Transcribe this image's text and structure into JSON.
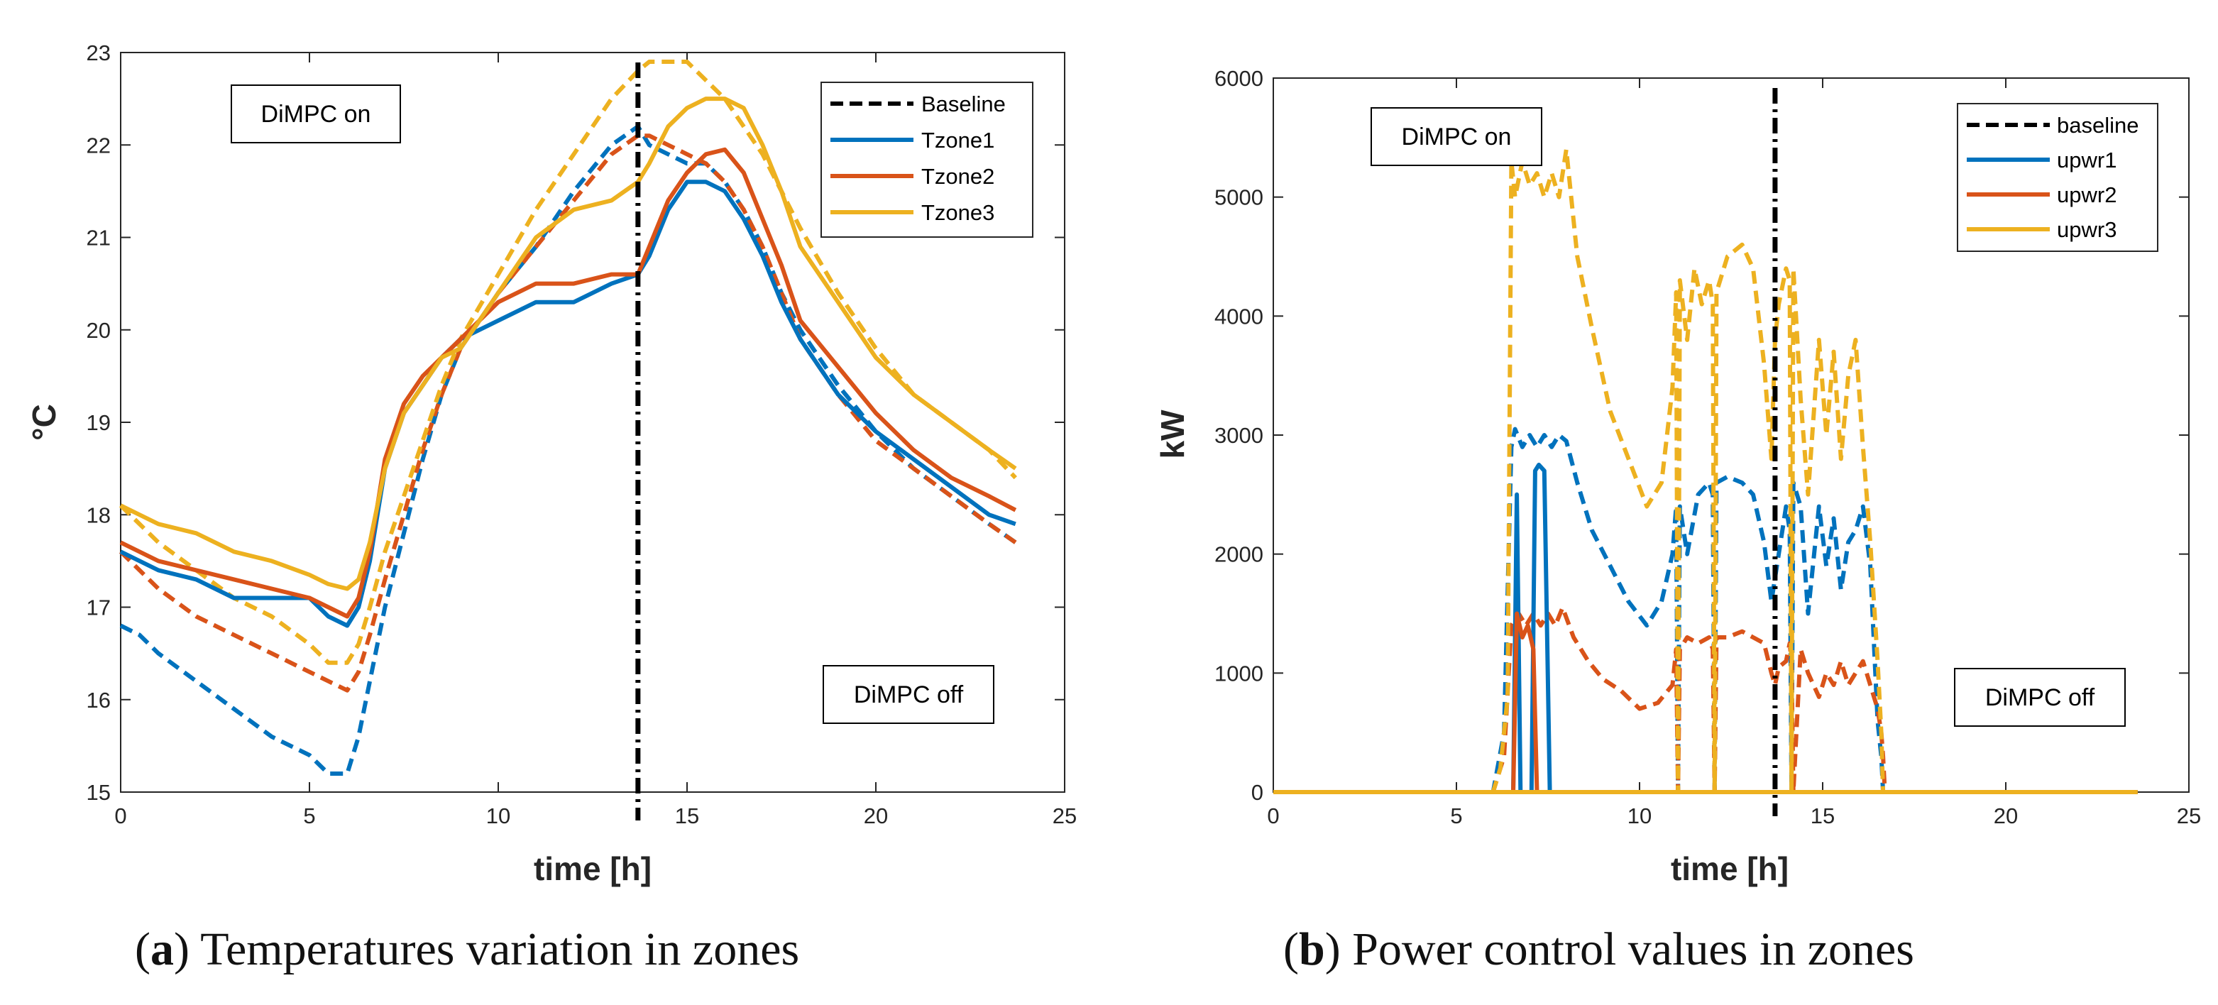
{
  "chart_data": [
    {
      "type": "line",
      "panel": "a",
      "caption_label": "a",
      "caption_text": "Temperatures variation in zones",
      "xlabel": "time [h]",
      "ylabel": "°C",
      "xlim": [
        0,
        25
      ],
      "ylim": [
        15,
        23
      ],
      "xticks": [
        0,
        5,
        10,
        15,
        20,
        25
      ],
      "yticks": [
        15,
        16,
        17,
        18,
        19,
        20,
        21,
        22,
        23
      ],
      "grid": false,
      "legend_position": "top-right",
      "vline": {
        "x": 13.7,
        "name": "Baseline",
        "color": "#000000",
        "style": "dash-dot"
      },
      "annotations": [
        {
          "text": "DiMPC on",
          "x": 5,
          "y": 22.3
        },
        {
          "text": "DiMPC off",
          "x": 21.4,
          "y": 16.0
        }
      ],
      "series": [
        {
          "name": "Baseline",
          "legend_only": true,
          "color": "#000000",
          "style": "dash"
        },
        {
          "name": "Tzone1",
          "color": "#0072BD",
          "style": "solid",
          "x": [
            0,
            1,
            2,
            3,
            4,
            5,
            5.5,
            6,
            6.3,
            6.6,
            7,
            7.5,
            8,
            8.5,
            9,
            10,
            11,
            12,
            13,
            13.7,
            14,
            14.5,
            15,
            15.5,
            16,
            16.5,
            17,
            17.5,
            18,
            19,
            20,
            21,
            22,
            23,
            23.7
          ],
          "y": [
            17.6,
            17.4,
            17.3,
            17.1,
            17.1,
            17.1,
            16.9,
            16.8,
            17.0,
            17.5,
            18.5,
            19.1,
            19.4,
            19.7,
            19.9,
            20.1,
            20.3,
            20.3,
            20.5,
            20.6,
            20.8,
            21.3,
            21.6,
            21.6,
            21.5,
            21.2,
            20.8,
            20.3,
            19.9,
            19.3,
            18.9,
            18.6,
            18.3,
            18.0,
            17.9
          ]
        },
        {
          "name": "Tzone2",
          "color": "#D95319",
          "style": "solid",
          "x": [
            0,
            1,
            2,
            3,
            4,
            5,
            5.5,
            6,
            6.3,
            6.6,
            7,
            7.5,
            8,
            8.5,
            9,
            10,
            11,
            12,
            13,
            13.7,
            14,
            14.5,
            15,
            15.5,
            16,
            16.5,
            17,
            17.5,
            18,
            19,
            20,
            21,
            22,
            23,
            23.7
          ],
          "y": [
            17.7,
            17.5,
            17.4,
            17.3,
            17.2,
            17.1,
            17.0,
            16.9,
            17.1,
            17.6,
            18.6,
            19.2,
            19.5,
            19.7,
            19.9,
            20.3,
            20.5,
            20.5,
            20.6,
            20.6,
            20.9,
            21.4,
            21.7,
            21.9,
            21.95,
            21.7,
            21.2,
            20.7,
            20.1,
            19.6,
            19.1,
            18.7,
            18.4,
            18.2,
            18.05
          ]
        },
        {
          "name": "Tzone3",
          "color": "#EDB120",
          "style": "solid",
          "x": [
            0,
            1,
            2,
            3,
            4,
            5,
            5.5,
            6,
            6.3,
            6.6,
            7,
            7.5,
            8,
            8.5,
            9,
            10,
            11,
            12,
            13,
            13.7,
            14,
            14.5,
            15,
            15.5,
            16,
            16.5,
            17,
            17.5,
            18,
            19,
            20,
            21,
            22,
            23,
            23.7
          ],
          "y": [
            18.1,
            17.9,
            17.8,
            17.6,
            17.5,
            17.35,
            17.25,
            17.2,
            17.3,
            17.7,
            18.5,
            19.1,
            19.4,
            19.7,
            19.8,
            20.4,
            21.0,
            21.3,
            21.4,
            21.6,
            21.8,
            22.2,
            22.4,
            22.5,
            22.5,
            22.4,
            22.0,
            21.5,
            20.9,
            20.3,
            19.7,
            19.3,
            19.0,
            18.7,
            18.5
          ]
        },
        {
          "name": "Tzone1 (baseline)",
          "legend_only_hidden": true,
          "color": "#0072BD",
          "style": "dash",
          "x": [
            0,
            0.5,
            1,
            2,
            3,
            4,
            5,
            5.5,
            6,
            6.3,
            6.6,
            7,
            7.5,
            8,
            8.5,
            9,
            10,
            11,
            12,
            13,
            13.7,
            14,
            14.5,
            15,
            15.5,
            16,
            16.5,
            17,
            17.5,
            18,
            19,
            20,
            21,
            22,
            23,
            23.7
          ],
          "y": [
            16.8,
            16.7,
            16.5,
            16.2,
            15.9,
            15.6,
            15.4,
            15.2,
            15.2,
            15.6,
            16.2,
            17.0,
            17.8,
            18.6,
            19.3,
            19.8,
            20.4,
            20.9,
            21.5,
            22.0,
            22.2,
            22.0,
            21.9,
            21.8,
            21.8,
            21.6,
            21.3,
            20.9,
            20.4,
            20.0,
            19.4,
            18.9,
            18.5,
            18.2,
            17.9,
            17.7
          ]
        },
        {
          "name": "Tzone2 (baseline)",
          "legend_only_hidden": true,
          "color": "#D95319",
          "style": "dash",
          "x": [
            0,
            0.5,
            1,
            2,
            3,
            4,
            5,
            5.5,
            6,
            6.3,
            6.6,
            7,
            7.5,
            8,
            8.5,
            9,
            10,
            11,
            12,
            13,
            13.7,
            14,
            14.5,
            15,
            15.5,
            16,
            16.5,
            17,
            17.5,
            18,
            19,
            20,
            21,
            22,
            23,
            23.7
          ],
          "y": [
            17.6,
            17.4,
            17.2,
            16.9,
            16.7,
            16.5,
            16.3,
            16.2,
            16.1,
            16.3,
            16.7,
            17.3,
            18.0,
            18.7,
            19.3,
            19.8,
            20.4,
            20.9,
            21.4,
            21.9,
            22.1,
            22.1,
            22.0,
            21.9,
            21.8,
            21.6,
            21.3,
            20.9,
            20.4,
            19.9,
            19.3,
            18.8,
            18.5,
            18.2,
            17.9,
            17.7
          ]
        },
        {
          "name": "Tzone3 (baseline)",
          "legend_only_hidden": true,
          "color": "#EDB120",
          "style": "dash",
          "x": [
            0,
            0.5,
            1,
            2,
            3,
            4,
            5,
            5.5,
            6,
            6.3,
            6.6,
            7,
            7.5,
            8,
            8.5,
            9,
            10,
            11,
            12,
            13,
            13.7,
            14,
            14.5,
            15,
            15.5,
            16,
            16.5,
            17,
            17.5,
            18,
            19,
            20,
            21,
            22,
            23,
            23.7
          ],
          "y": [
            18.1,
            17.9,
            17.7,
            17.4,
            17.1,
            16.9,
            16.6,
            16.4,
            16.4,
            16.6,
            17.0,
            17.6,
            18.2,
            18.8,
            19.4,
            19.9,
            20.6,
            21.3,
            21.9,
            22.5,
            22.8,
            22.9,
            22.9,
            22.9,
            22.7,
            22.5,
            22.2,
            21.9,
            21.5,
            21.1,
            20.4,
            19.8,
            19.3,
            19.0,
            18.7,
            18.4
          ]
        }
      ]
    },
    {
      "type": "line",
      "panel": "b",
      "caption_label": "b",
      "caption_text": "Power control values in zones",
      "xlabel": "time [h]",
      "ylabel": "kW",
      "xlim": [
        0,
        25
      ],
      "ylim": [
        0,
        6000
      ],
      "xticks": [
        0,
        5,
        10,
        15,
        20,
        25
      ],
      "yticks": [
        0,
        1000,
        2000,
        3000,
        4000,
        5000,
        6000
      ],
      "grid": false,
      "legend_position": "top-right",
      "vline": {
        "x": 13.7,
        "name": "baseline",
        "color": "#000000",
        "style": "dash-dot"
      },
      "annotations": [
        {
          "text": "DiMPC on",
          "x": 6.9,
          "y": 5500
        },
        {
          "text": "DiMPC off",
          "x": 22.3,
          "y": 800
        }
      ],
      "series": [
        {
          "name": "baseline",
          "legend_only": true,
          "color": "#000000",
          "style": "dash"
        },
        {
          "name": "upwr1",
          "color": "#0072BD",
          "style": "solid",
          "x": [
            0,
            6.4,
            6.55,
            6.65,
            6.75,
            6.9,
            7.05,
            7.15,
            7.25,
            7.4,
            7.55,
            7.7,
            23.6
          ],
          "y": [
            0,
            0,
            0,
            2500,
            0,
            0,
            0,
            2700,
            2750,
            2700,
            0,
            0,
            0
          ]
        },
        {
          "name": "upwr2",
          "color": "#D95319",
          "style": "solid",
          "x": [
            0,
            6.4,
            6.55,
            6.65,
            6.8,
            6.95,
            7.1,
            7.2,
            7.3,
            23.6
          ],
          "y": [
            0,
            0,
            0,
            1500,
            1300,
            1400,
            1200,
            0,
            0,
            0
          ]
        },
        {
          "name": "upwr3",
          "color": "#EDB120",
          "style": "solid",
          "x": [
            0,
            23.6
          ],
          "y": [
            0,
            0
          ]
        },
        {
          "name": "upwr1 (baseline)",
          "legend_only_hidden": true,
          "color": "#0072BD",
          "style": "dash",
          "x": [
            0,
            6.0,
            6.3,
            6.5,
            6.6,
            6.8,
            7.0,
            7.2,
            7.4,
            7.6,
            7.8,
            8.0,
            8.3,
            8.7,
            9.2,
            9.7,
            10.2,
            10.6,
            10.9,
            11.0,
            11.05,
            11.1,
            11.3,
            11.6,
            11.9,
            12.0,
            12.05,
            12.1,
            12.4,
            12.8,
            13.1,
            13.4,
            13.6,
            13.7,
            13.8,
            14.0,
            14.1,
            14.15,
            14.2,
            14.4,
            14.6,
            14.9,
            15.1,
            15.3,
            15.5,
            15.7,
            15.9,
            16.1,
            16.3,
            16.5,
            16.6,
            16.65,
            16.7,
            23.6
          ],
          "y": [
            0,
            0,
            500,
            2900,
            3050,
            2900,
            3000,
            2900,
            3000,
            2900,
            3000,
            2950,
            2600,
            2200,
            1900,
            1600,
            1400,
            1600,
            2000,
            2400,
            0,
            2400,
            2000,
            2500,
            2600,
            2500,
            0,
            2600,
            2650,
            2600,
            2500,
            2100,
            1600,
            1800,
            2000,
            2400,
            2200,
            0,
            2600,
            2400,
            1500,
            2400,
            1900,
            2300,
            1700,
            2100,
            2200,
            2400,
            1900,
            600,
            300,
            0,
            0,
            0
          ]
        },
        {
          "name": "upwr2 (baseline)",
          "legend_only_hidden": true,
          "color": "#D95319",
          "style": "dash",
          "x": [
            0,
            6.0,
            6.3,
            6.5,
            6.7,
            6.9,
            7.1,
            7.3,
            7.5,
            7.7,
            7.9,
            8.2,
            8.6,
            9.0,
            9.5,
            10.0,
            10.5,
            10.9,
            11.0,
            11.05,
            11.1,
            11.3,
            11.6,
            11.9,
            12.0,
            12.05,
            12.1,
            12.4,
            12.8,
            13.1,
            13.4,
            13.6,
            13.7,
            13.8,
            14.0,
            14.1,
            14.15,
            14.2,
            14.4,
            14.6,
            14.9,
            15.1,
            15.3,
            15.5,
            15.7,
            15.9,
            16.1,
            16.3,
            16.5,
            16.6,
            16.65,
            16.7,
            23.6
          ],
          "y": [
            0,
            0,
            300,
            1400,
            1500,
            1400,
            1500,
            1400,
            1500,
            1400,
            1550,
            1300,
            1100,
            950,
            850,
            700,
            750,
            900,
            1200,
            0,
            1200,
            1300,
            1250,
            1300,
            1200,
            0,
            1300,
            1300,
            1350,
            1300,
            1250,
            1000,
            900,
            1050,
            1100,
            1250,
            1100,
            0,
            1200,
            1000,
            800,
            1000,
            900,
            1100,
            900,
            1000,
            1100,
            900,
            700,
            500,
            300,
            0,
            0
          ]
        },
        {
          "name": "upwr3 (baseline)",
          "legend_only_hidden": true,
          "color": "#EDB120",
          "style": "dash",
          "x": [
            0,
            6.0,
            6.2,
            6.4,
            6.5,
            6.6,
            6.8,
            7.0,
            7.2,
            7.4,
            7.6,
            7.8,
            8.0,
            8.3,
            8.7,
            9.2,
            9.7,
            10.2,
            10.6,
            10.9,
            11.0,
            11.05,
            11.1,
            11.3,
            11.5,
            11.7,
            11.9,
            12.0,
            12.05,
            12.1,
            12.4,
            12.8,
            13.1,
            13.4,
            13.6,
            13.7,
            13.8,
            14.0,
            14.1,
            14.15,
            14.2,
            14.4,
            14.6,
            14.9,
            15.1,
            15.3,
            15.5,
            15.7,
            15.9,
            16.1,
            16.3,
            16.5,
            16.6,
            16.65,
            16.7,
            23.6
          ],
          "y": [
            0,
            0,
            200,
            800,
            5300,
            5000,
            5300,
            5100,
            5200,
            5000,
            5200,
            5000,
            5400,
            4500,
            3900,
            3200,
            2800,
            2400,
            2600,
            3400,
            4200,
            0,
            4300,
            3800,
            4400,
            4100,
            4300,
            4100,
            0,
            4200,
            4500,
            4600,
            4400,
            3600,
            2800,
            3800,
            4100,
            4400,
            4300,
            0,
            4400,
            3300,
            2500,
            3800,
            3000,
            3700,
            2800,
            3500,
            3800,
            2900,
            2100,
            1100,
            500,
            0,
            0,
            0
          ]
        }
      ]
    }
  ]
}
